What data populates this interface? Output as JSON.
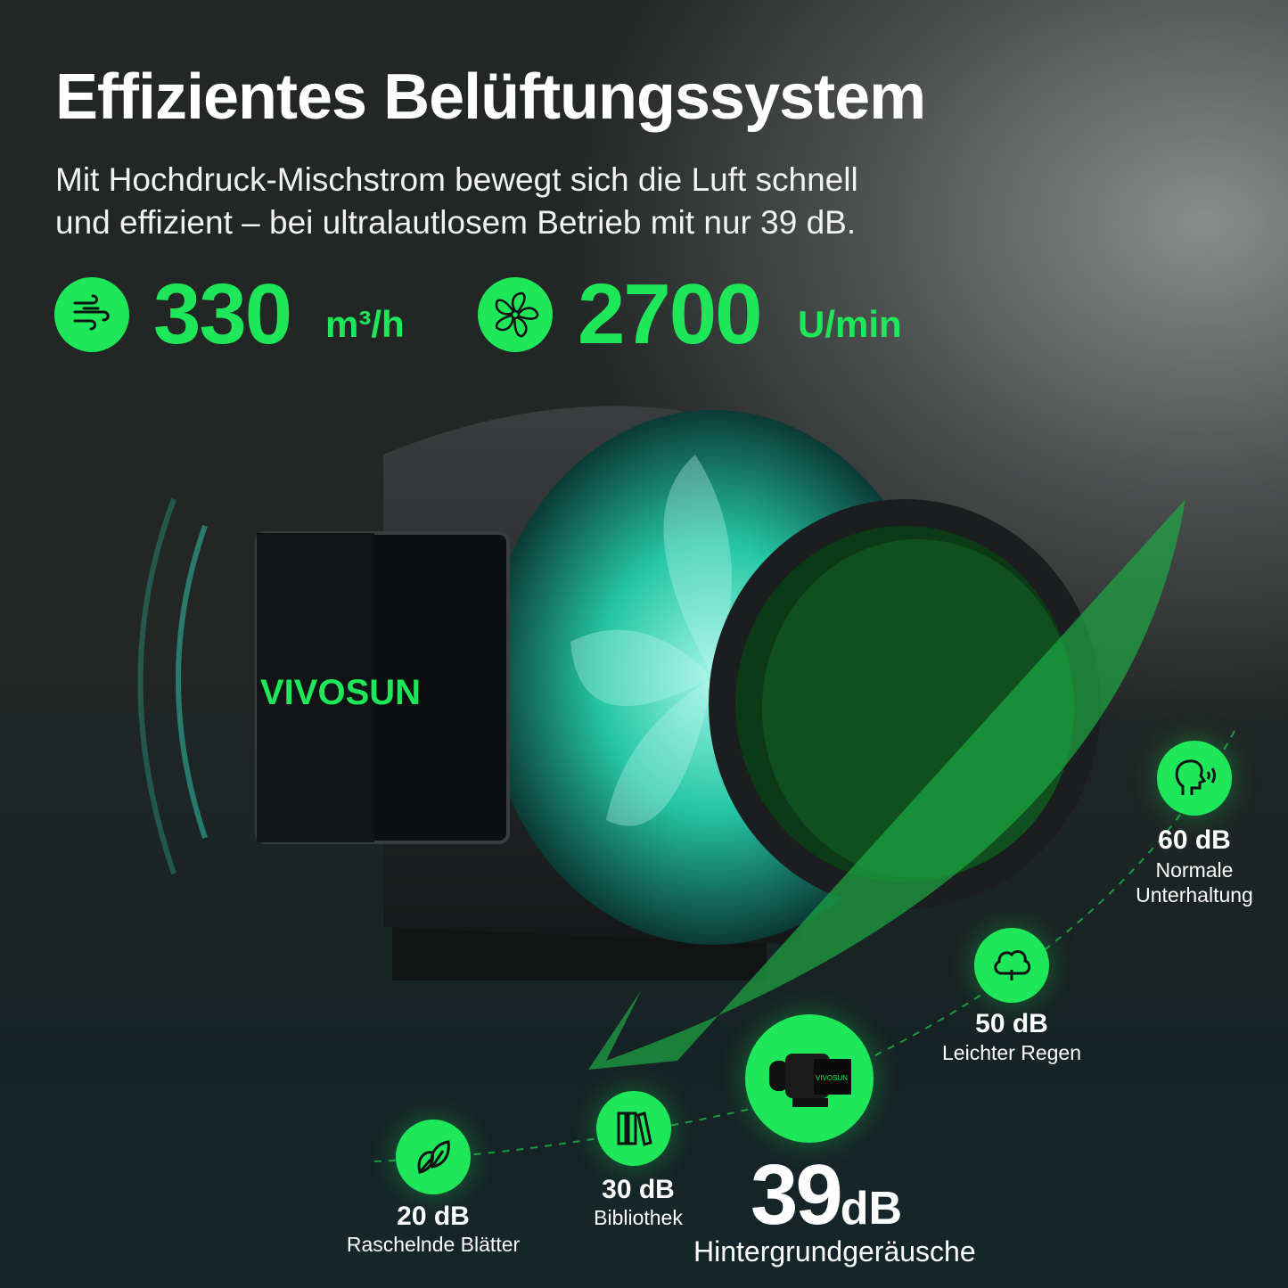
{
  "header": {
    "title": "Effizientes Belüftungssystem",
    "subtitle_line1": "Mit Hochdruck-Mischstrom bewegt sich die Luft schnell",
    "subtitle_line2": "und effizient – bei ultralautlosem Betrieb mit nur 39 dB."
  },
  "stats": [
    {
      "icon": "airflow-icon",
      "value": "330",
      "unit": "m³/h"
    },
    {
      "icon": "fan-icon",
      "value": "2700",
      "unit": "U/min"
    }
  ],
  "product": {
    "brand": "VIVOSUN"
  },
  "noise_scale": [
    {
      "icon": "leaf-icon",
      "value": "20 dB",
      "label": "Raschelnde Blätter"
    },
    {
      "icon": "books-icon",
      "value": "30 dB",
      "label": "Bibliothek"
    },
    {
      "icon": "product-icon",
      "value": "39",
      "unit": "dB",
      "label": "Hintergrundgeräusche"
    },
    {
      "icon": "cloud-rain-icon",
      "value": "50 dB",
      "label": "Leichter Regen"
    },
    {
      "icon": "speaking-head-icon",
      "value": "60 dB",
      "label_line1": "Normale",
      "label_line2": "Unterhaltung"
    }
  ],
  "colors": {
    "accent": "#1ee85a",
    "text": "#ffffff"
  }
}
